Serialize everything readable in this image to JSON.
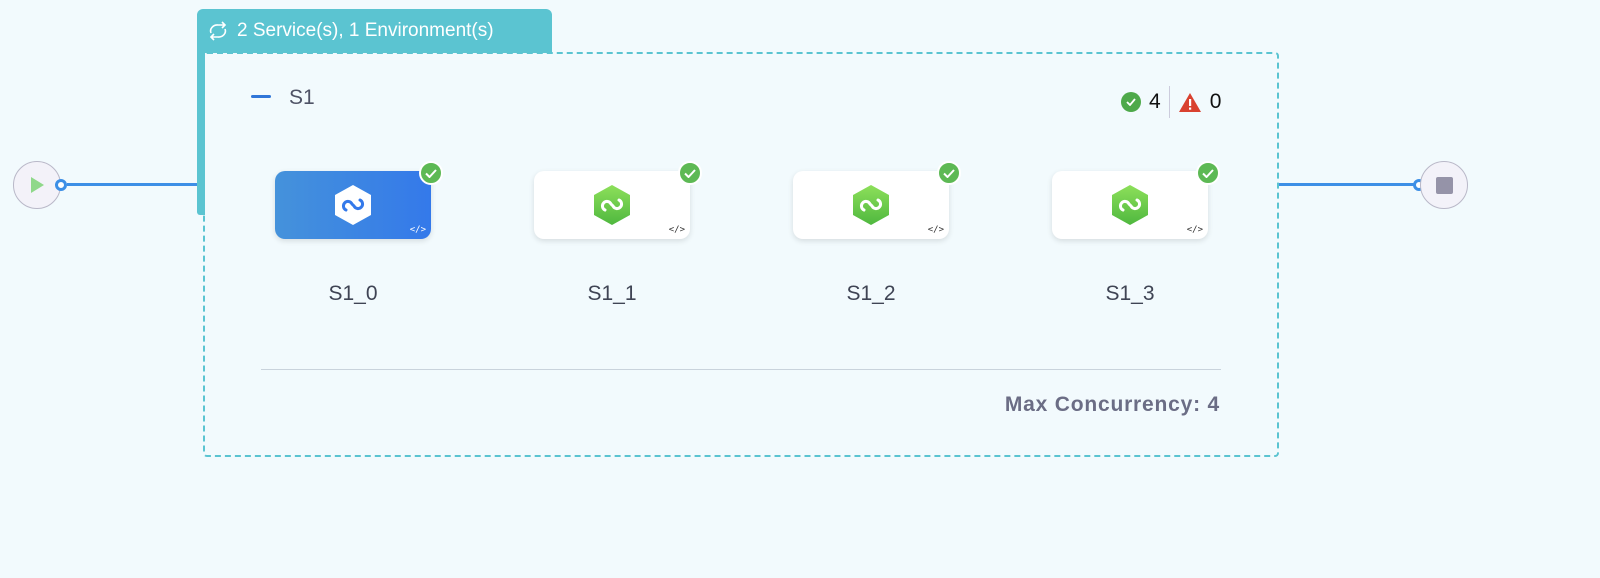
{
  "group": {
    "title": "2 Service(s), 1 Environment(s)",
    "icon": "loop-icon"
  },
  "stage": {
    "name": "S1",
    "success_count": "4",
    "warning_count": "0"
  },
  "nodes": [
    {
      "label": "S1_0",
      "selected": true,
      "status": "success"
    },
    {
      "label": "S1_1",
      "selected": false,
      "status": "success"
    },
    {
      "label": "S1_2",
      "selected": false,
      "status": "success"
    },
    {
      "label": "S1_3",
      "selected": false,
      "status": "success"
    }
  ],
  "footer": {
    "max_concurrency": "Max Concurrency: 4"
  },
  "colors": {
    "accent": "#5bc4d1",
    "line": "#3d8fe6",
    "success": "#5db954",
    "warning": "#d9412f"
  }
}
